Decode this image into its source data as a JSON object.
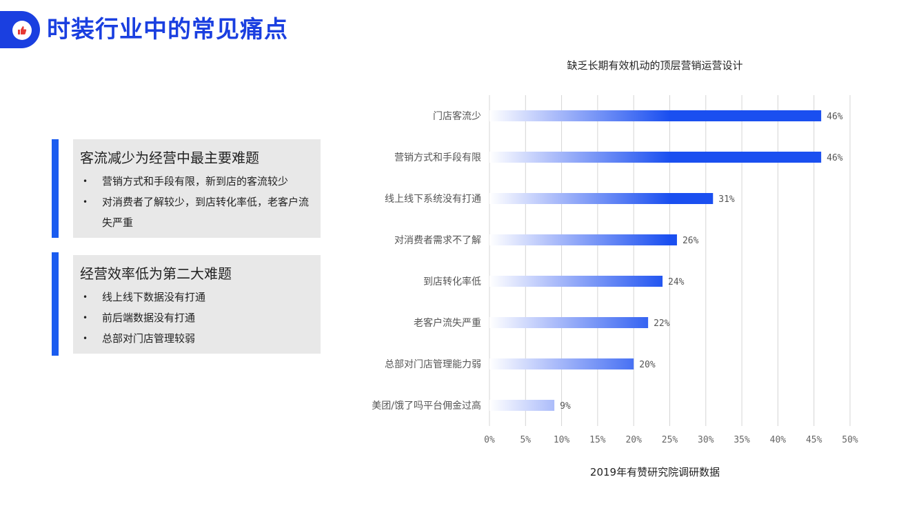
{
  "header": {
    "title": "时装行业中的常见痛点",
    "logo_icon": "thumbs-up-icon",
    "accent": "#1a3fe0"
  },
  "cards": [
    {
      "title": "客流减少为经营中最主要难题",
      "bullets": [
        "营销方式和手段有限，新到店的客流较少",
        "对消费者了解较少，到店转化率低，老客户流失严重"
      ]
    },
    {
      "title": "经营效率低为第二大难题",
      "bullets": [
        "线上线下数据没有打通",
        "前后端数据没有打通",
        "总部对门店管理较弱"
      ]
    }
  ],
  "chart_title": "缺乏长期有效机动的顶层营销运营设计",
  "chart_source": "2019年有赞研究院调研数据",
  "chart_data": {
    "type": "bar",
    "orientation": "horizontal",
    "categories": [
      "门店客流少",
      "营销方式和手段有限",
      "线上线下系统没有打通",
      "对消费者需求不了解",
      "到店转化率低",
      "老客户流失严重",
      "总部对门店管理能力弱",
      "美团/饿了吗平台佣金过高"
    ],
    "values": [
      46,
      46,
      31,
      26,
      24,
      22,
      20,
      9
    ],
    "value_labels": [
      "46%",
      "46%",
      "31%",
      "26%",
      "24%",
      "22%",
      "20%",
      "9%"
    ],
    "xticks": [
      "0%",
      "5%",
      "10%",
      "15%",
      "20%",
      "25%",
      "30%",
      "35%",
      "40%",
      "45%",
      "50%"
    ],
    "xlim": [
      0,
      50
    ],
    "grid": true,
    "bar_color": "#1a4ff0"
  }
}
